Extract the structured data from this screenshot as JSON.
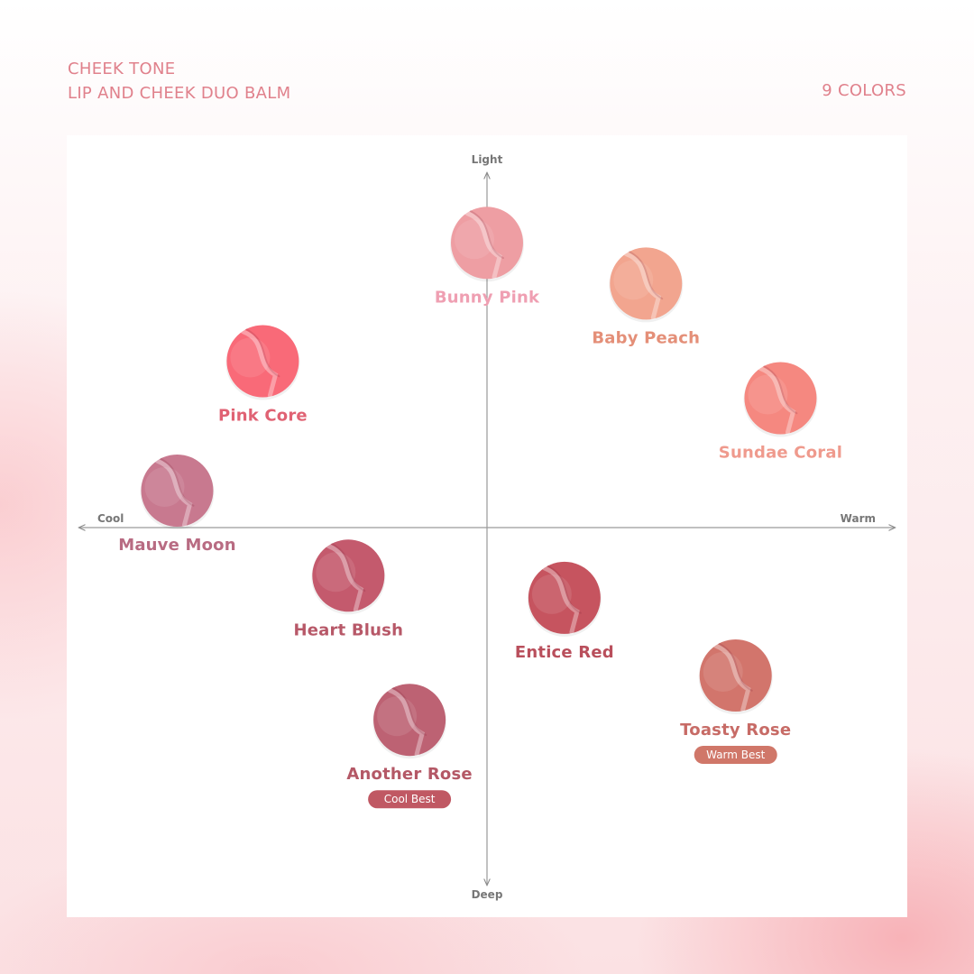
{
  "header": {
    "line1": "CHEEK TONE",
    "line2": "LIP AND CHEEK DUO BALM",
    "count": "9 COLORS"
  },
  "chart_data": {
    "type": "scatter",
    "title": "",
    "axes": {
      "x": {
        "negative_label": "Cool",
        "positive_label": "Warm",
        "range": [
          -1,
          1
        ]
      },
      "y": {
        "positive_label": "Light",
        "negative_label": "Deep",
        "range": [
          -1,
          1
        ]
      },
      "grid": false
    },
    "points": [
      {
        "name": "Bunny Pink",
        "x": 0.0,
        "y": 0.77,
        "swatch": "#ee9ea3",
        "label_color": "#ef9fb2",
        "badge": ""
      },
      {
        "name": "Baby Peach",
        "x": 0.39,
        "y": 0.66,
        "swatch": "#f2a58f",
        "label_color": "#e48f78",
        "badge": ""
      },
      {
        "name": "Sundae Coral",
        "x": 0.72,
        "y": 0.35,
        "swatch": "#f58880",
        "label_color": "#ef9a8d",
        "badge": ""
      },
      {
        "name": "Pink Core",
        "x": -0.55,
        "y": 0.45,
        "swatch": "#f96a78",
        "label_color": "#e06273",
        "badge": ""
      },
      {
        "name": "Mauve Moon",
        "x": -0.76,
        "y": 0.1,
        "swatch": "#c8798f",
        "label_color": "#b86b82",
        "badge": ""
      },
      {
        "name": "Heart Blush",
        "x": -0.34,
        "y": -0.13,
        "swatch": "#c45a6d",
        "label_color": "#b75868",
        "badge": ""
      },
      {
        "name": "Entice Red",
        "x": 0.19,
        "y": -0.19,
        "swatch": "#c6545f",
        "label_color": "#b94f5c",
        "badge": ""
      },
      {
        "name": "Toasty Rose",
        "x": 0.61,
        "y": -0.4,
        "swatch": "#d2756c",
        "label_color": "#c76b66",
        "badge": "Warm Best",
        "badge_color": "#d07769"
      },
      {
        "name": "Another Rose",
        "x": -0.19,
        "y": -0.52,
        "swatch": "#bd6273",
        "label_color": "#b45866",
        "badge": "Cool Best",
        "badge_color": "#c05863"
      }
    ]
  }
}
